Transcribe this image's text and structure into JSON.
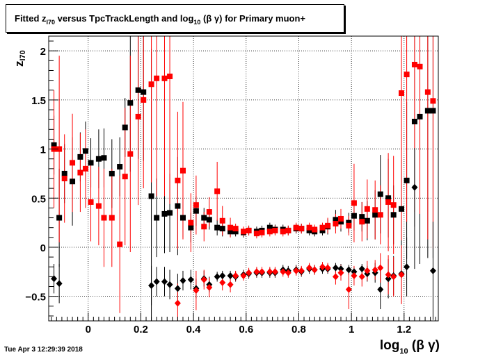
{
  "title": {
    "prefix": "Fitted  z",
    "sub": "I70",
    "middle": "  versus TpcTrackLength and log",
    "sub2": "10",
    "suffix": " (β γ) for Primary muon+"
  },
  "timestamp": "Tue Apr  3 12:29:39 2018",
  "chart_data": {
    "type": "scatter",
    "title": "Fitted  zI70  versus TpcTrackLength and log10 (β γ) for Primary muon+",
    "xlabel": "log10 (β γ)",
    "ylabel": "zI70",
    "xlim": [
      -0.15,
      1.33
    ],
    "ylim": [
      -0.75,
      2.15
    ],
    "xticks": [
      0,
      0.2,
      0.4,
      0.6,
      0.8,
      1,
      1.2
    ],
    "xtick_labels": [
      "0",
      "0.2",
      "0.4",
      "0.6",
      "0.8",
      "1",
      "1.2"
    ],
    "yticks": [
      -0.5,
      0,
      0.5,
      1,
      1.5,
      2
    ],
    "ytick_labels": [
      "−0.5",
      "0",
      "0.5",
      "1",
      "1.5",
      "2"
    ],
    "grid": true,
    "colors": {
      "black": "#000000",
      "red": "#ff0000"
    },
    "series": [
      {
        "color": "#000000",
        "marker": "square",
        "points": [
          [
            -0.13,
            1.04,
            0.3
          ],
          [
            -0.11,
            0.3,
            0.5
          ],
          [
            -0.09,
            0.75,
            0.3
          ],
          [
            -0.06,
            0.67,
            0.45
          ],
          [
            -0.03,
            0.92,
            0.25
          ],
          [
            -0.01,
            0.98,
            0.3
          ],
          [
            0.01,
            0.86,
            0.25
          ],
          [
            0.04,
            0.9,
            0.3
          ],
          [
            0.06,
            0.91,
            0.3
          ],
          [
            0.09,
            0.75,
            0.35
          ],
          [
            0.12,
            0.82,
            0.3
          ],
          [
            0.14,
            1.22,
            0.3
          ],
          [
            0.16,
            1.47,
            0.7
          ],
          [
            0.19,
            1.6,
            0.7
          ],
          [
            0.21,
            1.58,
            0.7
          ],
          [
            0.24,
            0.52,
            1.5
          ],
          [
            0.26,
            0.3,
            0.4
          ],
          [
            0.29,
            0.34,
            0.4
          ],
          [
            0.31,
            0.35,
            0.4
          ],
          [
            0.34,
            0.42,
            0.5
          ],
          [
            0.36,
            0.3,
            0.2
          ],
          [
            0.39,
            0.2,
            0.15
          ],
          [
            0.41,
            0.37,
            0.15
          ],
          [
            0.44,
            0.3,
            0.1
          ],
          [
            0.46,
            0.28,
            0.1
          ],
          [
            0.49,
            0.2,
            0.08
          ],
          [
            0.51,
            0.19,
            0.08
          ],
          [
            0.54,
            0.16,
            0.05
          ],
          [
            0.56,
            0.16,
            0.05
          ],
          [
            0.59,
            0.15,
            0.05
          ],
          [
            0.61,
            0.17,
            0.05
          ],
          [
            0.64,
            0.16,
            0.05
          ],
          [
            0.66,
            0.17,
            0.05
          ],
          [
            0.69,
            0.2,
            0.05
          ],
          [
            0.71,
            0.18,
            0.05
          ],
          [
            0.74,
            0.18,
            0.05
          ],
          [
            0.76,
            0.17,
            0.05
          ],
          [
            0.79,
            0.19,
            0.05
          ],
          [
            0.81,
            0.19,
            0.05
          ],
          [
            0.84,
            0.17,
            0.05
          ],
          [
            0.86,
            0.16,
            0.05
          ],
          [
            0.89,
            0.17,
            0.05
          ],
          [
            0.91,
            0.21,
            0.08
          ],
          [
            0.94,
            0.28,
            0.1
          ],
          [
            0.96,
            0.26,
            0.1
          ],
          [
            0.99,
            0.25,
            0.1
          ],
          [
            1.01,
            0.32,
            0.15
          ],
          [
            1.04,
            0.31,
            0.15
          ],
          [
            1.06,
            0.27,
            0.2
          ],
          [
            1.09,
            0.33,
            0.25
          ],
          [
            1.11,
            0.54,
            0.4
          ],
          [
            1.14,
            0.5,
            0.4
          ],
          [
            1.16,
            0.33,
            0.3
          ],
          [
            1.19,
            0.39,
            0.5
          ],
          [
            1.21,
            0.68,
            0.8
          ],
          [
            1.24,
            1.28,
            1.5
          ],
          [
            1.26,
            1.33,
            1.5
          ],
          [
            1.29,
            1.39,
            1.5
          ],
          [
            1.31,
            1.39,
            1.5
          ]
        ]
      },
      {
        "color": "#ff0000",
        "marker": "square",
        "points": [
          [
            -0.13,
            1.0,
            0.6
          ],
          [
            -0.11,
            1.0,
            0.95
          ],
          [
            -0.09,
            0.7,
            0.45
          ],
          [
            -0.06,
            0.86,
            0.5
          ],
          [
            -0.03,
            0.76,
            0.4
          ],
          [
            -0.01,
            0.8,
            0.4
          ],
          [
            0.01,
            0.46,
            0.4
          ],
          [
            0.04,
            0.42,
            0.4
          ],
          [
            0.06,
            0.3,
            0.5
          ],
          [
            0.09,
            0.3,
            0.5
          ],
          [
            0.12,
            0.03,
            0.7
          ],
          [
            0.14,
            0.72,
            0.7
          ],
          [
            0.16,
            0.95,
            1.0
          ],
          [
            0.19,
            1.33,
            0.9
          ],
          [
            0.21,
            1.5,
            0.9
          ],
          [
            0.24,
            1.66,
            1.0
          ],
          [
            0.26,
            1.72,
            1.2
          ],
          [
            0.29,
            1.72,
            1.2
          ],
          [
            0.31,
            1.74,
            1.3
          ],
          [
            0.34,
            0.68,
            0.7
          ],
          [
            0.36,
            0.78,
            0.7
          ],
          [
            0.39,
            0.25,
            0.3
          ],
          [
            0.41,
            0.43,
            0.3
          ],
          [
            0.44,
            0.21,
            0.15
          ],
          [
            0.46,
            0.36,
            0.15
          ],
          [
            0.49,
            0.57,
            0.3
          ],
          [
            0.51,
            0.27,
            0.15
          ],
          [
            0.54,
            0.2,
            0.1
          ],
          [
            0.56,
            0.19,
            0.05
          ],
          [
            0.59,
            0.16,
            0.05
          ],
          [
            0.61,
            0.17,
            0.05
          ],
          [
            0.64,
            0.14,
            0.05
          ],
          [
            0.66,
            0.15,
            0.05
          ],
          [
            0.69,
            0.16,
            0.05
          ],
          [
            0.71,
            0.17,
            0.05
          ],
          [
            0.74,
            0.16,
            0.05
          ],
          [
            0.76,
            0.17,
            0.05
          ],
          [
            0.79,
            0.2,
            0.05
          ],
          [
            0.81,
            0.19,
            0.05
          ],
          [
            0.84,
            0.2,
            0.05
          ],
          [
            0.86,
            0.18,
            0.05
          ],
          [
            0.89,
            0.2,
            0.05
          ],
          [
            0.91,
            0.22,
            0.08
          ],
          [
            0.94,
            0.24,
            0.1
          ],
          [
            0.96,
            0.29,
            0.1
          ],
          [
            0.99,
            0.22,
            0.1
          ],
          [
            1.01,
            0.45,
            0.4
          ],
          [
            1.04,
            0.26,
            0.2
          ],
          [
            1.06,
            0.39,
            0.3
          ],
          [
            1.09,
            0.38,
            0.3
          ],
          [
            1.11,
            0.33,
            0.3
          ],
          [
            1.14,
            0.46,
            0.5
          ],
          [
            1.16,
            0.43,
            0.5
          ],
          [
            1.19,
            1.57,
            1.5
          ],
          [
            1.21,
            1.76,
            1.5
          ],
          [
            1.24,
            1.86,
            1.5
          ],
          [
            1.26,
            1.84,
            1.5
          ],
          [
            1.29,
            1.58,
            1.5
          ],
          [
            1.31,
            1.49,
            1.5
          ]
        ]
      },
      {
        "color": "#000000",
        "marker": "diamond",
        "points": [
          [
            -0.13,
            -0.32,
            0.15
          ],
          [
            -0.11,
            -0.37,
            0.2
          ],
          [
            0.24,
            -0.39,
            0.2
          ],
          [
            0.26,
            -0.35,
            0.15
          ],
          [
            0.29,
            -0.35,
            0.15
          ],
          [
            0.31,
            -0.38,
            0.15
          ],
          [
            0.34,
            -0.42,
            0.15
          ],
          [
            0.36,
            -0.34,
            0.1
          ],
          [
            0.39,
            -0.33,
            0.1
          ],
          [
            0.41,
            -0.42,
            0.1
          ],
          [
            0.44,
            -0.32,
            0.08
          ],
          [
            0.46,
            -0.38,
            0.08
          ],
          [
            0.49,
            -0.3,
            0.05
          ],
          [
            0.51,
            -0.29,
            0.05
          ],
          [
            0.54,
            -0.29,
            0.05
          ],
          [
            0.56,
            -0.3,
            0.05
          ],
          [
            0.59,
            -0.28,
            0.05
          ],
          [
            0.61,
            -0.27,
            0.05
          ],
          [
            0.64,
            -0.26,
            0.05
          ],
          [
            0.66,
            -0.26,
            0.05
          ],
          [
            0.69,
            -0.26,
            0.05
          ],
          [
            0.71,
            -0.26,
            0.05
          ],
          [
            0.74,
            -0.23,
            0.05
          ],
          [
            0.76,
            -0.24,
            0.05
          ],
          [
            0.79,
            -0.23,
            0.05
          ],
          [
            0.81,
            -0.25,
            0.05
          ],
          [
            0.84,
            -0.22,
            0.05
          ],
          [
            0.86,
            -0.23,
            0.05
          ],
          [
            0.89,
            -0.22,
            0.05
          ],
          [
            0.91,
            -0.22,
            0.05
          ],
          [
            0.94,
            -0.21,
            0.05
          ],
          [
            0.96,
            -0.22,
            0.05
          ],
          [
            0.99,
            -0.23,
            0.05
          ],
          [
            1.01,
            -0.25,
            0.05
          ],
          [
            1.04,
            -0.22,
            0.05
          ],
          [
            1.06,
            -0.27,
            0.08
          ],
          [
            1.09,
            -0.26,
            0.1
          ],
          [
            1.11,
            -0.43,
            0.2
          ],
          [
            1.14,
            -0.32,
            0.2
          ],
          [
            1.16,
            -0.29,
            0.2
          ],
          [
            1.19,
            -0.27,
            0.3
          ],
          [
            1.21,
            -0.2,
            0.3
          ],
          [
            1.24,
            0.61,
            0.4
          ],
          [
            1.31,
            -0.24,
            0.5
          ]
        ]
      },
      {
        "color": "#ff0000",
        "marker": "diamond",
        "points": [
          [
            0.34,
            -0.57,
            0.2
          ],
          [
            0.41,
            -0.44,
            0.2
          ],
          [
            0.44,
            -0.33,
            0.1
          ],
          [
            0.46,
            -0.41,
            0.1
          ],
          [
            0.51,
            -0.36,
            0.08
          ],
          [
            0.54,
            -0.38,
            0.08
          ],
          [
            0.56,
            -0.29,
            0.05
          ],
          [
            0.59,
            -0.29,
            0.05
          ],
          [
            0.61,
            -0.26,
            0.05
          ],
          [
            0.64,
            -0.25,
            0.05
          ],
          [
            0.66,
            -0.25,
            0.05
          ],
          [
            0.69,
            -0.25,
            0.05
          ],
          [
            0.71,
            -0.25,
            0.05
          ],
          [
            0.74,
            -0.25,
            0.05
          ],
          [
            0.76,
            -0.26,
            0.05
          ],
          [
            0.79,
            -0.24,
            0.05
          ],
          [
            0.81,
            -0.24,
            0.05
          ],
          [
            0.84,
            -0.21,
            0.05
          ],
          [
            0.86,
            -0.23,
            0.05
          ],
          [
            0.89,
            -0.2,
            0.05
          ],
          [
            0.91,
            -0.21,
            0.05
          ],
          [
            0.94,
            -0.3,
            0.08
          ],
          [
            0.96,
            -0.26,
            0.08
          ],
          [
            0.99,
            -0.43,
            0.2
          ],
          [
            1.01,
            -0.29,
            0.1
          ],
          [
            1.04,
            -0.3,
            0.1
          ],
          [
            1.06,
            -0.24,
            0.1
          ],
          [
            1.09,
            -0.23,
            0.1
          ],
          [
            1.11,
            -0.21,
            0.15
          ],
          [
            1.14,
            -0.28,
            0.2
          ],
          [
            1.16,
            -0.3,
            0.2
          ],
          [
            1.19,
            -0.28,
            0.3
          ]
        ]
      }
    ]
  }
}
